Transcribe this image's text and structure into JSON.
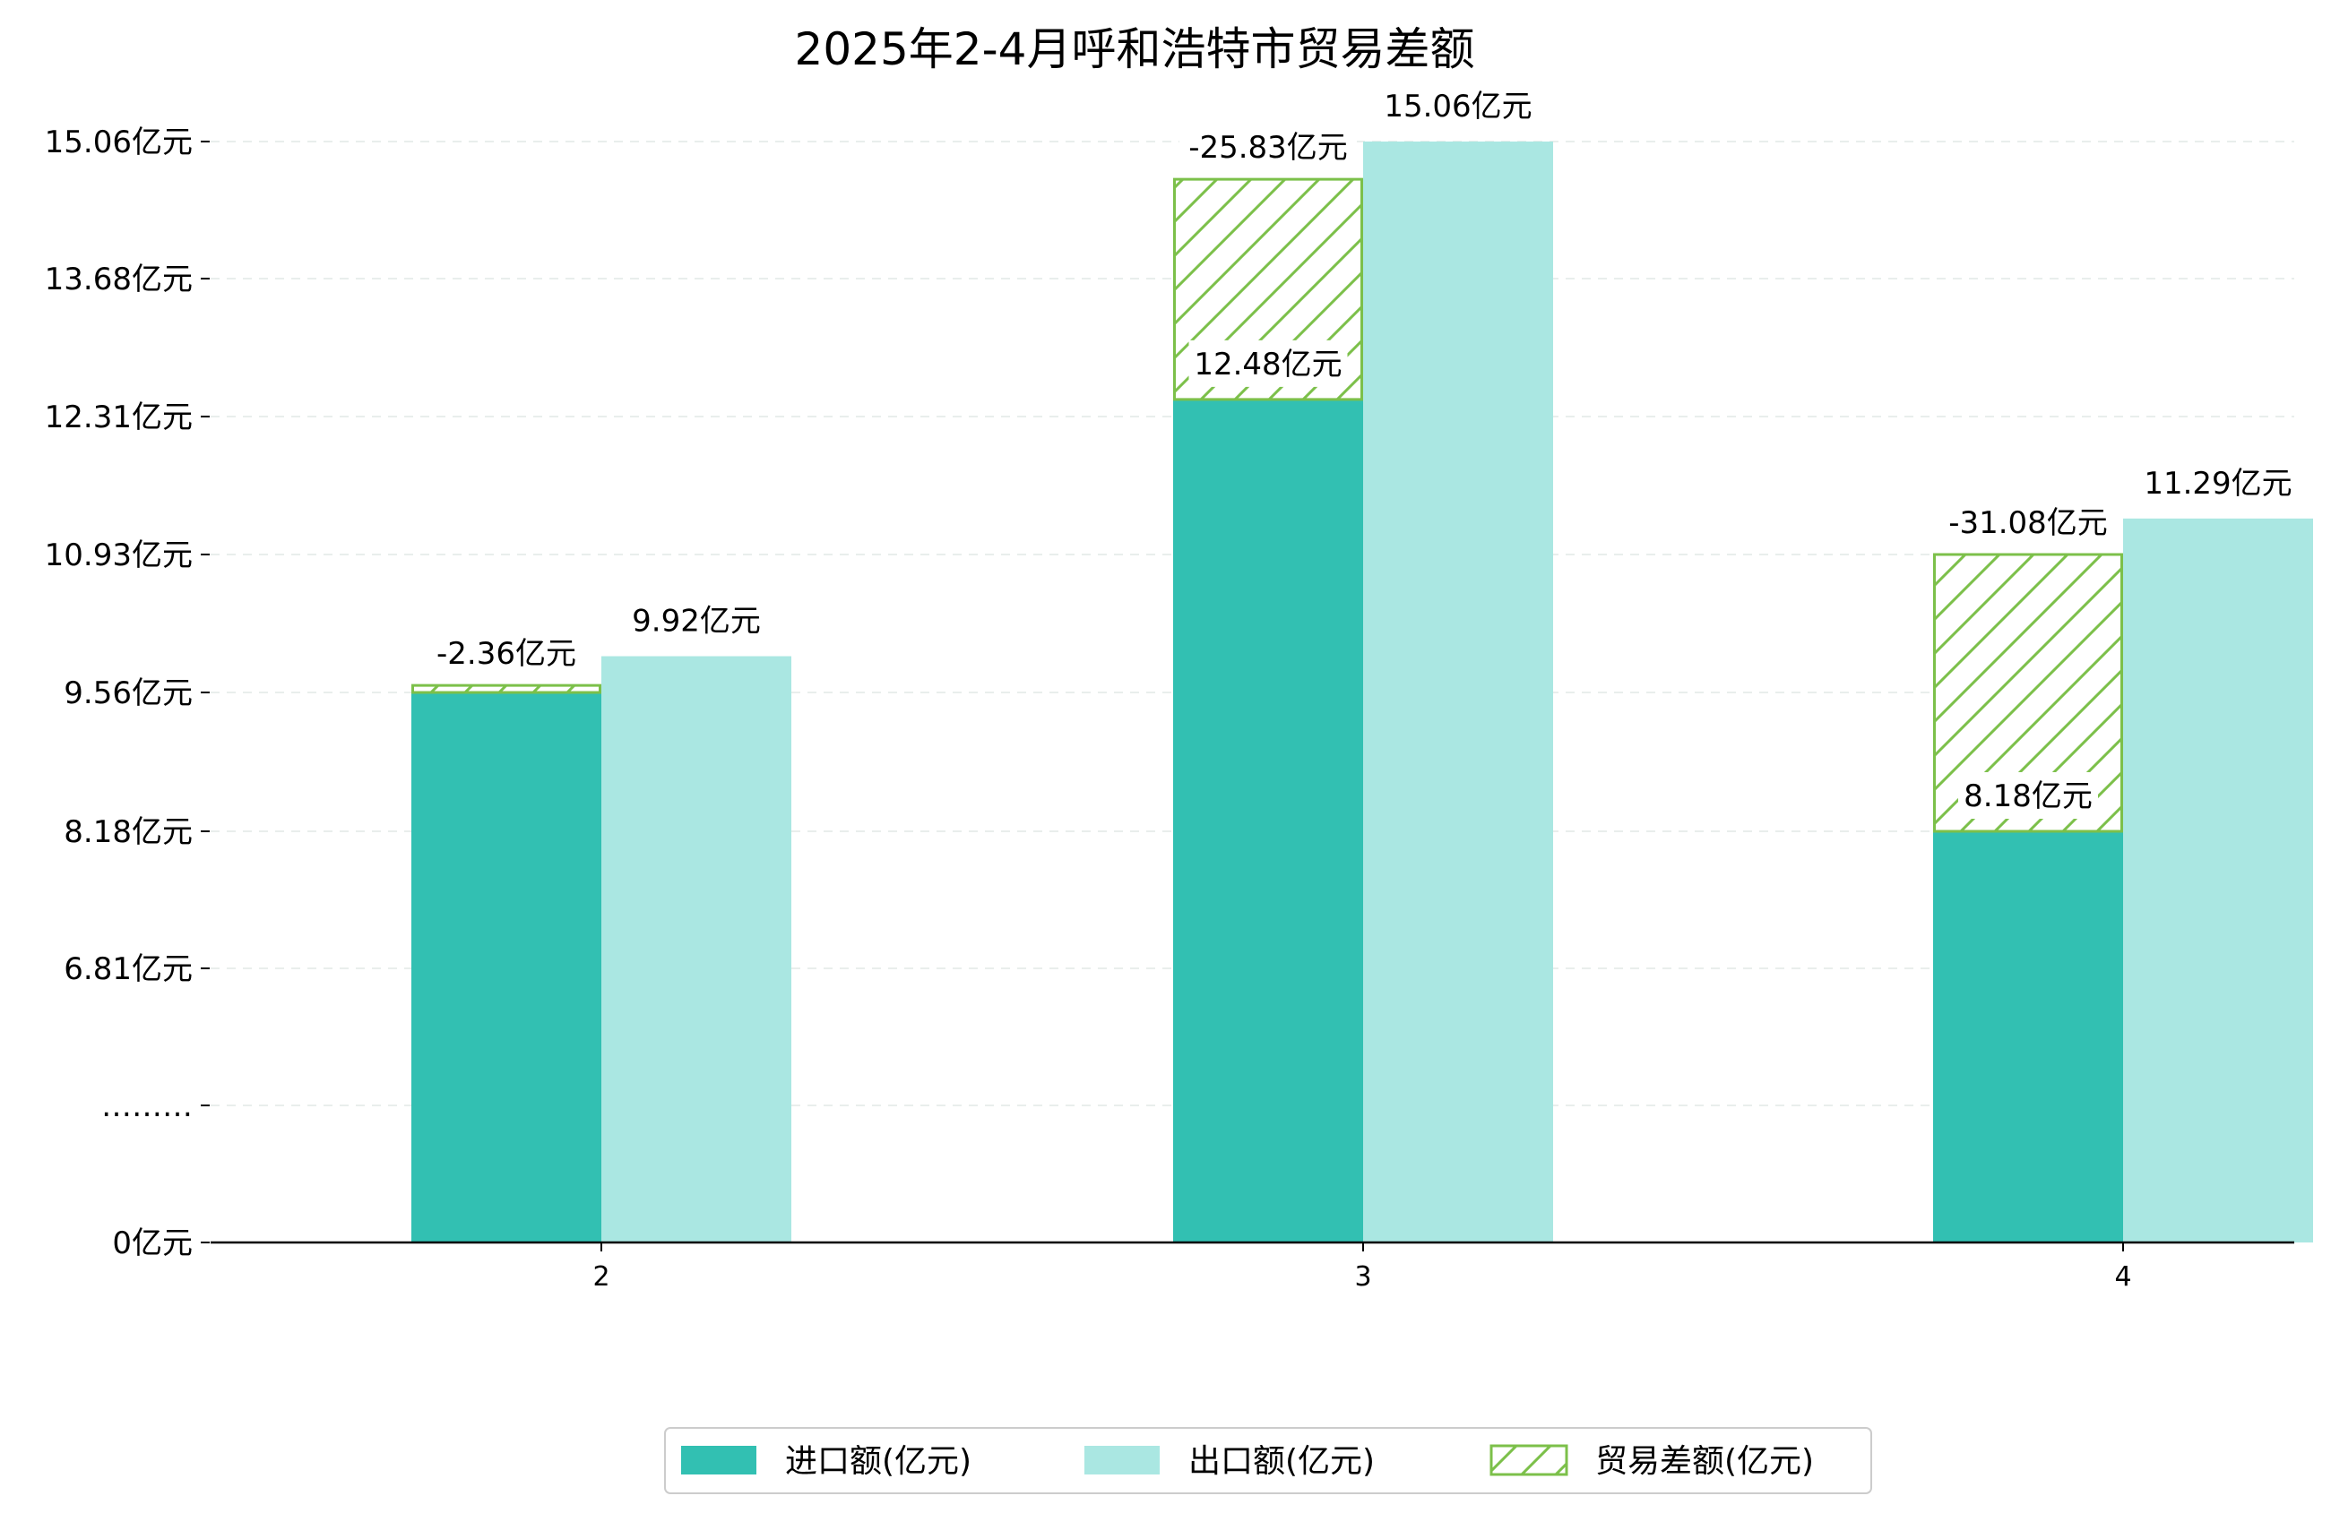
{
  "chart_data": {
    "type": "bar",
    "title": "2025年2-4月呼和浩特市贸易差额",
    "xlabel": "",
    "ylabel": "",
    "categories": [
      "2",
      "3",
      "4"
    ],
    "y_ticks": [
      {
        "label": "0亿元",
        "value": 0
      },
      {
        "label": "………",
        "value": 5.43
      },
      {
        "label": "6.81亿元",
        "value": 6.81
      },
      {
        "label": "8.18亿元",
        "value": 8.18
      },
      {
        "label": "9.56亿元",
        "value": 9.56
      },
      {
        "label": "10.93亿元",
        "value": 10.93
      },
      {
        "label": "12.31亿元",
        "value": 12.31
      },
      {
        "label": "13.68亿元",
        "value": 13.68
      },
      {
        "label": "15.06亿元",
        "value": 15.06
      }
    ],
    "ylim_display": [
      0,
      15.5
    ],
    "grid": "horizontal dashed",
    "legend_position": "bottom-center",
    "series": [
      {
        "name": "进口额(亿元)",
        "color": "#32c0b2",
        "values": [
          9.56,
          12.48,
          8.18
        ],
        "labels": [
          "",
          "12.48亿元",
          "8.18亿元"
        ]
      },
      {
        "name": "出口额(亿元)",
        "color": "#aae7e2",
        "values": [
          9.92,
          15.06,
          11.29
        ],
        "labels": [
          "9.92亿元",
          "15.06亿元",
          "11.29亿元"
        ]
      },
      {
        "name": "贸易差额(亿元)",
        "color": "#7cc04a",
        "pattern": "hatch",
        "values": [
          -2.36,
          -25.83,
          -31.08
        ],
        "labels": [
          "-2.36亿元",
          "-25.83亿元",
          "-31.08亿元"
        ],
        "stack_base": [
          9.56,
          12.48,
          8.18
        ],
        "stack_top": [
          9.63,
          14.68,
          10.93
        ]
      }
    ]
  }
}
